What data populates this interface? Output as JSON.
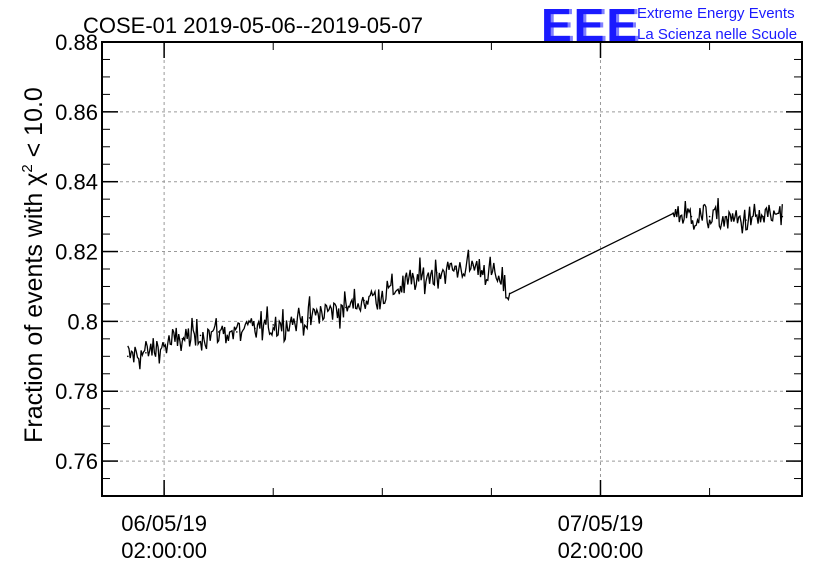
{
  "chart_data": {
    "type": "line",
    "title": "COSE-01 2019-05-06--2019-05-07",
    "ylabel": "Fraction of events with χ² < 10.0",
    "xlabel": "",
    "ylim": [
      0.75,
      0.88
    ],
    "yticks": [
      0.76,
      0.78,
      0.8,
      0.82,
      0.84,
      0.86,
      0.88
    ],
    "ytick_labels": [
      "0.76",
      "0.78",
      "0.8",
      "0.82",
      "0.84",
      "0.86",
      "0.88"
    ],
    "xlim": [
      "2019-05-05 22:35",
      "2019-05-07 13:05"
    ],
    "xticks": [
      {
        "x": "2019-05-06 02:00",
        "label_date": "06/05/19",
        "label_time": "02:00:00"
      },
      {
        "x": "2019-05-07 02:00",
        "label_date": "07/05/19",
        "label_time": "02:00:00"
      }
    ],
    "grid": true,
    "line_color": "#000000",
    "series": [
      {
        "x": [
          "2019-05-06 00:00",
          "2019-05-06 01:00",
          "2019-05-06 02:00",
          "2019-05-06 03:00",
          "2019-05-06 04:00",
          "2019-05-06 05:00",
          "2019-05-06 06:00",
          "2019-05-06 07:00",
          "2019-05-06 08:00",
          "2019-05-06 09:00",
          "2019-05-06 10:00",
          "2019-05-06 11:00",
          "2019-05-06 12:00",
          "2019-05-06 13:00",
          "2019-05-06 14:00",
          "2019-05-06 15:00",
          "2019-05-06 16:00",
          "2019-05-06 17:00",
          "2019-05-06 18:00",
          "2019-05-06 19:00",
          "2019-05-06 20:00",
          "2019-05-06 21:00",
          "2019-05-07 06:00",
          "2019-05-07 07:00",
          "2019-05-07 08:00",
          "2019-05-07 09:00",
          "2019-05-07 10:00",
          "2019-05-07 11:00",
          "2019-05-07 12:00"
        ],
        "values": [
          0.79,
          0.791,
          0.793,
          0.795,
          0.796,
          0.797,
          0.797,
          0.798,
          0.799,
          0.8,
          0.801,
          0.803,
          0.804,
          0.806,
          0.808,
          0.81,
          0.812,
          0.814,
          0.815,
          0.816,
          0.814,
          0.808,
          0.831,
          0.83,
          0.83,
          0.829,
          0.829,
          0.83,
          0.83
        ]
      }
    ]
  },
  "logo": {
    "mark": "EEE",
    "line1": "Extreme Energy Events",
    "line2": "La Scienza nelle Scuole",
    "color": "#1a1aff"
  }
}
